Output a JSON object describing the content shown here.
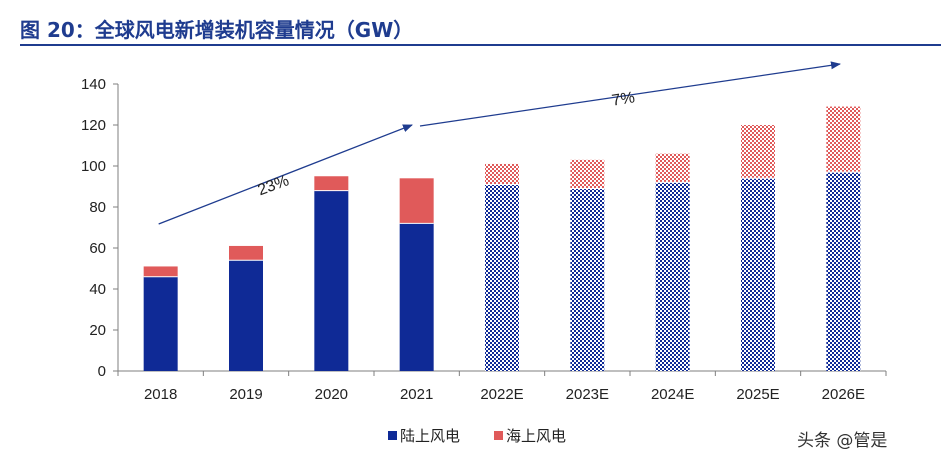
{
  "page": {
    "title": "图 20：全球风电新增装机容量情况（GW）"
  },
  "watermark": "头条 @管是",
  "colors": {
    "title": "#1f3c8f",
    "onshore": "#0f2a96",
    "offshore": "#e05a5a",
    "axis": "#7f7f7f",
    "annotation": "#1f3c8f",
    "text": "#222222"
  },
  "chart_data": {
    "type": "bar",
    "stacked": true,
    "title": "全球风电新增装机容量情况（GW）",
    "xlabel": "",
    "ylabel": "",
    "categories": [
      "2018",
      "2019",
      "2020",
      "2021",
      "2022E",
      "2023E",
      "2024E",
      "2025E",
      "2026E"
    ],
    "forecast_from_index": 4,
    "series": [
      {
        "name": "陆上风电",
        "values": [
          46,
          54,
          88,
          72,
          91,
          89,
          92,
          94,
          97
        ]
      },
      {
        "name": "海上风电",
        "values": [
          5,
          7,
          7,
          22,
          10,
          14,
          14,
          26,
          32
        ]
      }
    ],
    "ylim": [
      0,
      140
    ],
    "yticks": [
      0,
      20,
      40,
      60,
      80,
      100,
      120,
      140
    ],
    "grid": false,
    "legend_position": "bottom",
    "annotations": [
      {
        "text": "23%",
        "from_category": "2018",
        "to_category": "2021"
      },
      {
        "text": "7%",
        "from_category": "2021",
        "to_category": "2026E"
      }
    ]
  }
}
